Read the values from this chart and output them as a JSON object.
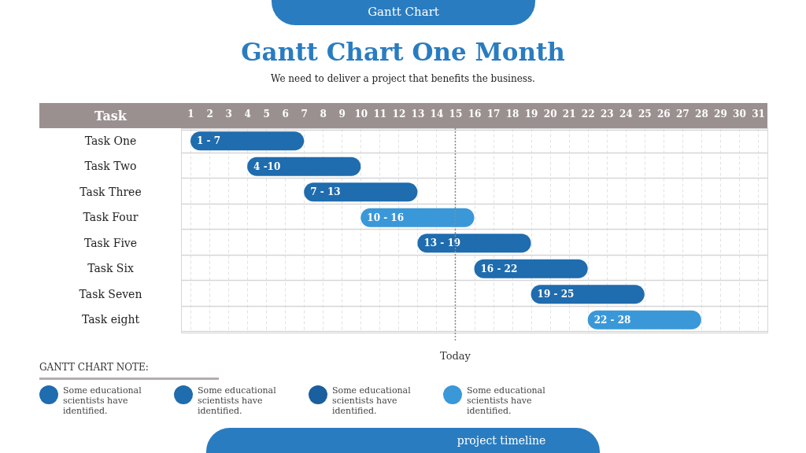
{
  "chart_data": {
    "type": "bar",
    "orientation": "horizontal",
    "title": "Gantt Chart One Month",
    "subtitle": "We need to deliver a project that benefits the business.",
    "ylabel": "Task",
    "categories": [
      "Task One",
      "Task Two",
      "Task Three",
      "Task Four",
      "Task Five",
      "Task Six",
      "Task Seven",
      "Task eight"
    ],
    "base": [
      1,
      4,
      7,
      10,
      13,
      16,
      19,
      22
    ],
    "values": [
      6,
      6,
      6,
      6,
      6,
      6,
      6,
      6
    ],
    "colors": [
      "#1f6cae",
      "#1f6cae",
      "#1f6cae",
      "#3a98d8",
      "#1f6cae",
      "#1f6cae",
      "#1f6cae",
      "#3a98d8"
    ],
    "xlim": [
      0.5,
      31.5
    ],
    "xticks": [
      1,
      2,
      3,
      4,
      5,
      6,
      7,
      8,
      9,
      10,
      11,
      12,
      13,
      14,
      15,
      16,
      17,
      18,
      19,
      20,
      21,
      22,
      23,
      24,
      25,
      26,
      27,
      28,
      29,
      30,
      31
    ],
    "grid": true,
    "ref_lines": [
      {
        "axis": "x",
        "value": 15,
        "label": "Today",
        "color": "#8e8a8a",
        "line_style": "dotted"
      }
    ],
    "annotations": [
      {
        "text": "1 - 7",
        "x": 1,
        "y": "Task One"
      },
      {
        "text": "4 -10",
        "x": 4,
        "y": "Task Two"
      },
      {
        "text": "7 - 13",
        "x": 7,
        "y": "Task Three"
      },
      {
        "text": "10 - 16",
        "x": 10,
        "y": "Task Four"
      },
      {
        "text": "13 - 19",
        "x": 13,
        "y": "Task Five"
      },
      {
        "text": "16 - 22",
        "x": 16,
        "y": "Task Six"
      },
      {
        "text": "19 - 25",
        "x": 19,
        "y": "Task Seven"
      },
      {
        "text": "22 - 28",
        "x": 22,
        "y": "Task eight"
      },
      "Gantt Chart",
      "GANTT CHART  NOTE:",
      "Some educational scientists have identified.",
      "Some educational scientists have identified.",
      "Some educational scientists have identified.",
      "Some educational scientists have identified.",
      "project timeline"
    ]
  }
}
